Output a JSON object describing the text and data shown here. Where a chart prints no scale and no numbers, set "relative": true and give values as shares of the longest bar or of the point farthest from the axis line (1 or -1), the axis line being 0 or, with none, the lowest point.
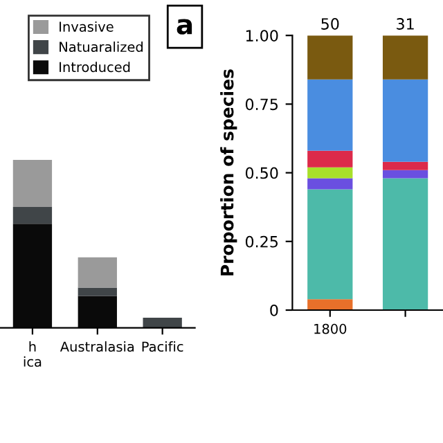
{
  "chart_data": [
    {
      "type": "bar",
      "stacked": true,
      "relative": true,
      "categories": [
        "h\nica",
        "Australasia",
        "Pacific"
      ],
      "legend": "top right",
      "annotations": [
        "a"
      ],
      "series": [
        {
          "name": "Introduced",
          "color": "#0a0a0a",
          "values": [
            0.62,
            0.19,
            0
          ]
        },
        {
          "name": "Natuaralized",
          "color": "#404548",
          "values": [
            0.1,
            0.05,
            0.06
          ]
        },
        {
          "name": "Invasive",
          "color": "#9a9a9a",
          "values": [
            0.28,
            0.18,
            0
          ]
        }
      ]
    },
    {
      "type": "bar",
      "stacked": true,
      "categories": [
        "1800",
        null
      ],
      "ylabel": "Proportion of species",
      "ylim": [
        0,
        1
      ],
      "yticks": [
        0,
        0.25,
        {
          "value": 0.5,
          "label": "0.50"
        },
        0.75,
        {
          "value": 1,
          "label": "1.00"
        }
      ],
      "annotations": [
        "50",
        "31"
      ],
      "series": [
        {
          "color": "#e8702a",
          "values": [
            0.04,
            0
          ]
        },
        {
          "color": "#4dbaa9",
          "values": [
            0.4,
            0.48
          ]
        },
        {
          "color": "#6a4fe0",
          "values": [
            0.04,
            0.03
          ]
        },
        {
          "color": "#a8e02a",
          "values": [
            0.04,
            0
          ]
        },
        {
          "color": "#dc2a4a",
          "values": [
            0.06,
            0.03
          ]
        },
        {
          "color": "#4a8de0",
          "values": [
            0.26,
            0.3
          ]
        },
        {
          "color": "#7a5a10",
          "values": [
            0.16,
            0.16
          ]
        }
      ]
    }
  ]
}
